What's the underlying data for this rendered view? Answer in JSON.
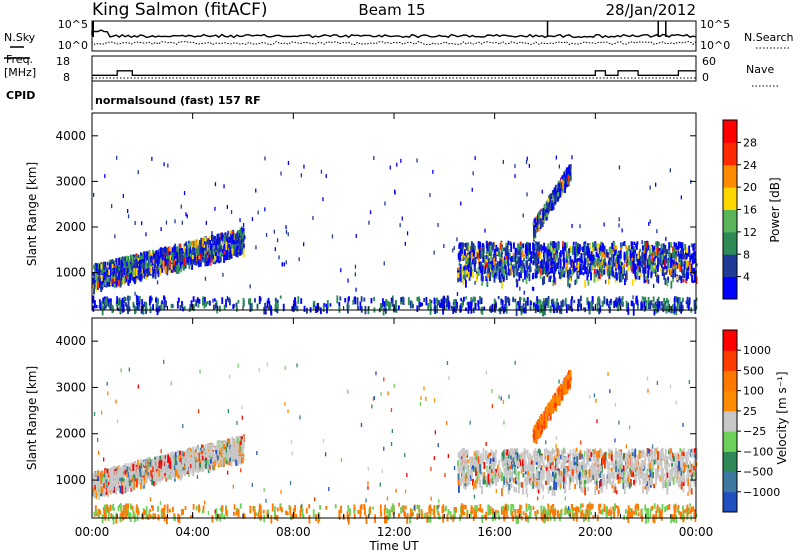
{
  "header": {
    "station": "King Salmon (fitACF)",
    "beam": "Beam 15",
    "date": "28/Jan/2012",
    "cpid_label": "CPID",
    "cpid_text": "normalsound (fast) 157 RF"
  },
  "noise_panel": {
    "left_label": "N.Sky",
    "right_label": "N.Search",
    "left_ticks": [
      "10^5",
      "10^0"
    ],
    "right_ticks": [
      "10^5",
      "10^0"
    ]
  },
  "freq_panel": {
    "left_label_1": "Freq.",
    "left_label_2": "[MHz]",
    "right_label": "Nave",
    "left_ticks": [
      "18",
      "8"
    ],
    "right_ticks": [
      "60",
      "0"
    ],
    "freq_mhz": [
      [
        0.0,
        10.5
      ],
      [
        1.0,
        10.5
      ],
      [
        1.0,
        13.5
      ],
      [
        1.6,
        13.5
      ],
      [
        1.6,
        10.5
      ],
      [
        20.0,
        10.5
      ],
      [
        20.0,
        13.5
      ],
      [
        20.4,
        13.5
      ],
      [
        20.4,
        10.5
      ],
      [
        20.9,
        10.5
      ],
      [
        20.9,
        13.5
      ],
      [
        21.7,
        13.5
      ],
      [
        21.7,
        10.5
      ],
      [
        23.3,
        10.5
      ],
      [
        23.3,
        13.5
      ],
      [
        24.0,
        13.5
      ]
    ]
  },
  "chart_data": [
    {
      "type": "heatmap",
      "name": "power-panel",
      "ylabel": "Slant Range [km]",
      "yticks": [
        "4000",
        "3000",
        "2000",
        "1000"
      ],
      "xlim": [
        0,
        24
      ],
      "ylim": [
        180,
        4500
      ],
      "colorbar_label": "Power [dB]",
      "colorbar_ticks": [
        "28",
        "24",
        "20",
        "16",
        "12",
        "8",
        "4"
      ],
      "colorbar_colors": [
        "#0000ff",
        "#1e3c96",
        "#2e8b57",
        "#5ab45a",
        "#ffd700",
        "#ff8c00",
        "#ff2a00",
        "#ff0000"
      ],
      "echo_regions": [
        {
          "t": [
            0.0,
            6.0
          ],
          "range_km": [
            800,
            2200
          ]
        },
        {
          "t": [
            14.5,
            24.0
          ],
          "range_km": [
            700,
            1800
          ]
        },
        {
          "t": [
            17.5,
            19.0
          ],
          "range_km": [
            2000,
            3400
          ]
        },
        {
          "t": [
            0.0,
            24.0
          ],
          "range_km": [
            180,
            500
          ]
        }
      ]
    },
    {
      "type": "heatmap",
      "name": "velocity-panel",
      "ylabel": "Slant Range [km]",
      "yticks": [
        "4000",
        "3000",
        "2000",
        "1000"
      ],
      "xlim": [
        0,
        24
      ],
      "ylim": [
        180,
        4500
      ],
      "colorbar_label": "Velocity [m s⁻¹]",
      "colorbar_ticks": [
        "1000",
        "500",
        "100",
        "25",
        "−25",
        "−100",
        "−500",
        "−1000"
      ],
      "colorbar_colors": [
        "#2050c0",
        "#3c78a0",
        "#2e8b57",
        "#6ed25a",
        "#c8c8c8",
        "#ff8c00",
        "#ff7800",
        "#ff3c00",
        "#ff0000"
      ],
      "xticks": [
        "00:00",
        "04:00",
        "08:00",
        "12:00",
        "16:00",
        "20:00",
        "00:00"
      ],
      "xlabel": "Time UT"
    }
  ]
}
